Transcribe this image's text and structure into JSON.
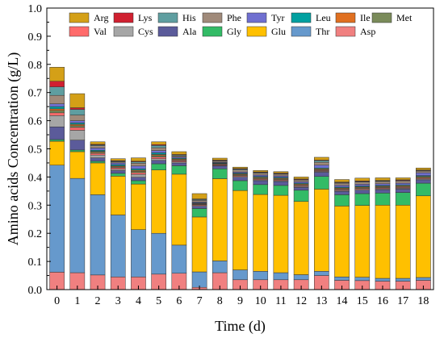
{
  "chart_data": {
    "type": "bar",
    "stacked": true,
    "xlabel": "Time (d)",
    "ylabel": "Amino acids Concentration (g/L)",
    "ylim": [
      0,
      1.0
    ],
    "yticks": [
      "0.0",
      "0.1",
      "0.2",
      "0.3",
      "0.4",
      "0.5",
      "0.6",
      "0.7",
      "0.8",
      "0.9",
      "1.0"
    ],
    "categories": [
      "0",
      "1",
      "2",
      "3",
      "4",
      "5",
      "6",
      "7",
      "8",
      "9",
      "10",
      "11",
      "12",
      "13",
      "14",
      "15",
      "16",
      "17",
      "18"
    ],
    "legend_position": "top",
    "legend_rows": [
      [
        "Arg",
        "Lys",
        "His",
        "Phe",
        "Tyr",
        "Leu",
        "Ile",
        "Met"
      ],
      [
        "Val",
        "Cys",
        "Ala",
        "Gly",
        "Glu",
        "Thr",
        "Asp"
      ]
    ],
    "series": [
      {
        "name": "Asp",
        "color": "#F08080",
        "values": [
          0.062,
          0.06,
          0.052,
          0.045,
          0.045,
          0.055,
          0.058,
          0.008,
          0.06,
          0.035,
          0.035,
          0.035,
          0.035,
          0.05,
          0.033,
          0.032,
          0.03,
          0.03,
          0.033
        ]
      },
      {
        "name": "Thr",
        "color": "#6699CC",
        "values": [
          0.38,
          0.335,
          0.285,
          0.22,
          0.168,
          0.145,
          0.1,
          0.055,
          0.042,
          0.035,
          0.03,
          0.025,
          0.018,
          0.015,
          0.012,
          0.012,
          0.01,
          0.01,
          0.01
        ]
      },
      {
        "name": "Glu",
        "color": "#FFC000",
        "values": [
          0.085,
          0.095,
          0.113,
          0.138,
          0.162,
          0.225,
          0.252,
          0.195,
          0.292,
          0.282,
          0.273,
          0.275,
          0.26,
          0.292,
          0.252,
          0.255,
          0.26,
          0.26,
          0.29
        ]
      },
      {
        "name": "Gly",
        "color": "#33BB66",
        "values": [
          0.006,
          0.006,
          0.006,
          0.01,
          0.012,
          0.022,
          0.03,
          0.03,
          0.035,
          0.035,
          0.035,
          0.035,
          0.04,
          0.045,
          0.04,
          0.042,
          0.043,
          0.045,
          0.045
        ]
      },
      {
        "name": "Ala",
        "color": "#5B5B9A",
        "values": [
          0.045,
          0.035,
          0.012,
          0.01,
          0.012,
          0.012,
          0.01,
          0.008,
          0.01,
          0.012,
          0.014,
          0.014,
          0.01,
          0.015,
          0.012,
          0.012,
          0.012,
          0.012,
          0.012
        ]
      },
      {
        "name": "Cys",
        "color": "#A6A6A6",
        "values": [
          0.04,
          0.035,
          0.01,
          0.005,
          0.01,
          0.006,
          0.004,
          0.003,
          0.002,
          0.003,
          0.003,
          0.003,
          0.003,
          0.003,
          0.003,
          0.003,
          0.003,
          0.003,
          0.003
        ]
      },
      {
        "name": "Val",
        "color": "#FF6B6B",
        "values": [
          0.01,
          0.01,
          0.006,
          0.005,
          0.006,
          0.006,
          0.004,
          0.003,
          0.003,
          0.003,
          0.003,
          0.003,
          0.003,
          0.003,
          0.003,
          0.003,
          0.003,
          0.003,
          0.003
        ]
      },
      {
        "name": "Met",
        "color": "#7A8B5A",
        "values": [
          0.008,
          0.006,
          0.004,
          0.003,
          0.005,
          0.005,
          0.003,
          0.002,
          0.002,
          0.003,
          0.003,
          0.003,
          0.003,
          0.003,
          0.003,
          0.003,
          0.003,
          0.003,
          0.003
        ]
      },
      {
        "name": "Ile",
        "color": "#E07020",
        "values": [
          0.006,
          0.005,
          0.003,
          0.003,
          0.004,
          0.004,
          0.003,
          0.002,
          0.002,
          0.003,
          0.003,
          0.003,
          0.003,
          0.003,
          0.003,
          0.003,
          0.003,
          0.003,
          0.003
        ]
      },
      {
        "name": "Leu",
        "color": "#00A0A0",
        "values": [
          0.008,
          0.005,
          0.004,
          0.005,
          0.005,
          0.006,
          0.003,
          0.002,
          0.002,
          0.003,
          0.003,
          0.003,
          0.003,
          0.003,
          0.003,
          0.003,
          0.003,
          0.003,
          0.003
        ]
      },
      {
        "name": "Tyr",
        "color": "#6F6FD0",
        "values": [
          0.01,
          0.008,
          0.008,
          0.006,
          0.01,
          0.008,
          0.004,
          0.003,
          0.002,
          0.004,
          0.005,
          0.005,
          0.005,
          0.01,
          0.006,
          0.006,
          0.006,
          0.006,
          0.01
        ]
      },
      {
        "name": "Phe",
        "color": "#A08A7A",
        "values": [
          0.03,
          0.02,
          0.008,
          0.004,
          0.01,
          0.01,
          0.004,
          0.006,
          0.004,
          0.007,
          0.007,
          0.006,
          0.006,
          0.01,
          0.008,
          0.008,
          0.008,
          0.008,
          0.006
        ]
      },
      {
        "name": "His",
        "color": "#5F9EA0",
        "values": [
          0.03,
          0.02,
          0.003,
          0.002,
          0.005,
          0.008,
          0.003,
          0.003,
          0.002,
          0.003,
          0.002,
          0.002,
          0.002,
          0.006,
          0.002,
          0.002,
          0.002,
          0.002,
          0.002
        ]
      },
      {
        "name": "Lys",
        "color": "#D02030",
        "values": [
          0.02,
          0.006,
          0.002,
          0.002,
          0.002,
          0.003,
          0.002,
          0.002,
          0.002,
          0.002,
          0.002,
          0.002,
          0.002,
          0.002,
          0.002,
          0.002,
          0.002,
          0.002,
          0.002
        ]
      },
      {
        "name": "Arg",
        "color": "#D4A017",
        "values": [
          0.05,
          0.05,
          0.009,
          0.007,
          0.012,
          0.01,
          0.01,
          0.019,
          0.007,
          0.005,
          0.005,
          0.005,
          0.007,
          0.01,
          0.009,
          0.01,
          0.009,
          0.007,
          0.007
        ]
      }
    ]
  }
}
